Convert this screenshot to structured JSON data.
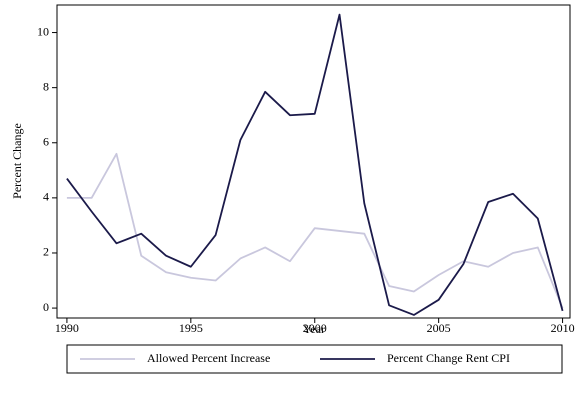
{
  "chart_data": {
    "type": "line",
    "x_label": "Year",
    "y_label": "Percent Change",
    "x": [
      1990,
      1991,
      1992,
      1993,
      1994,
      1995,
      1996,
      1997,
      1998,
      1999,
      2000,
      2001,
      2002,
      2003,
      2004,
      2005,
      2006,
      2007,
      2008,
      2009,
      2010
    ],
    "series": [
      {
        "name": "Allowed Percent Increase",
        "color": "#c9c7dd",
        "values": [
          4.0,
          4.0,
          5.6,
          1.9,
          1.3,
          1.1,
          1.0,
          1.8,
          2.2,
          1.7,
          2.9,
          2.8,
          2.7,
          0.8,
          0.6,
          1.2,
          1.7,
          1.5,
          2.0,
          2.2,
          0.0
        ]
      },
      {
        "name": "Percent Change Rent CPI",
        "color": "#1b1a4a",
        "values": [
          4.7,
          3.5,
          2.35,
          2.7,
          1.9,
          1.5,
          2.65,
          6.1,
          7.85,
          7.0,
          7.05,
          10.65,
          3.8,
          0.1,
          -0.25,
          0.3,
          1.6,
          3.85,
          4.15,
          3.25,
          -0.1
        ]
      }
    ],
    "xlim": [
      1989.6,
      2010.3
    ],
    "xticks": [
      1990,
      1995,
      2000,
      2005,
      2010
    ],
    "ylim": [
      -0.36,
      11.0
    ],
    "yticks": [
      0,
      2,
      4,
      6,
      8,
      10
    ],
    "legend": "bottom"
  }
}
